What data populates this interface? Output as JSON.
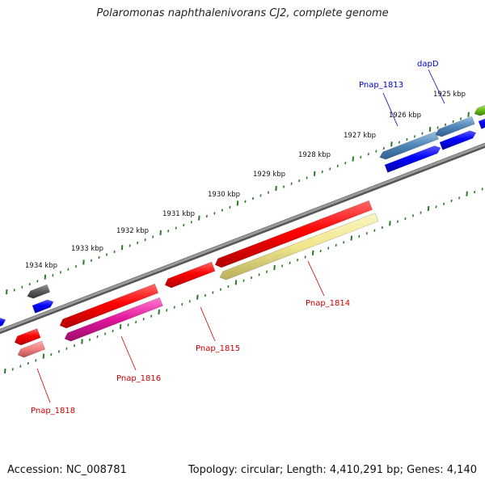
{
  "title": "Polaromonas naphthalenivorans CJ2, complete genome",
  "footer": {
    "accession": "Accession: NC_008781",
    "topology": "Topology: circular; Length: 4,410,291 bp; Genes: 4,140"
  },
  "colors": {
    "forward_label": "#0000cc",
    "reverse_label": "#cc0000",
    "tick": "#2a7a2a",
    "backbone": "#8a8a8a"
  },
  "kbp_labels": [
    "1925 kbp",
    "1926 kbp",
    "1927 kbp",
    "1928 kbp",
    "1929 kbp",
    "1930 kbp",
    "1931 kbp",
    "1932 kbp",
    "1933 kbp",
    "1934 kbp"
  ],
  "gene_labels": {
    "dapD": "dapD",
    "pnap1813": "Pnap_1813",
    "pnap1814": "Pnap_1814",
    "pnap1815": "Pnap_1815",
    "pnap1816": "Pnap_1816",
    "pnap1818": "Pnap_1818"
  }
}
